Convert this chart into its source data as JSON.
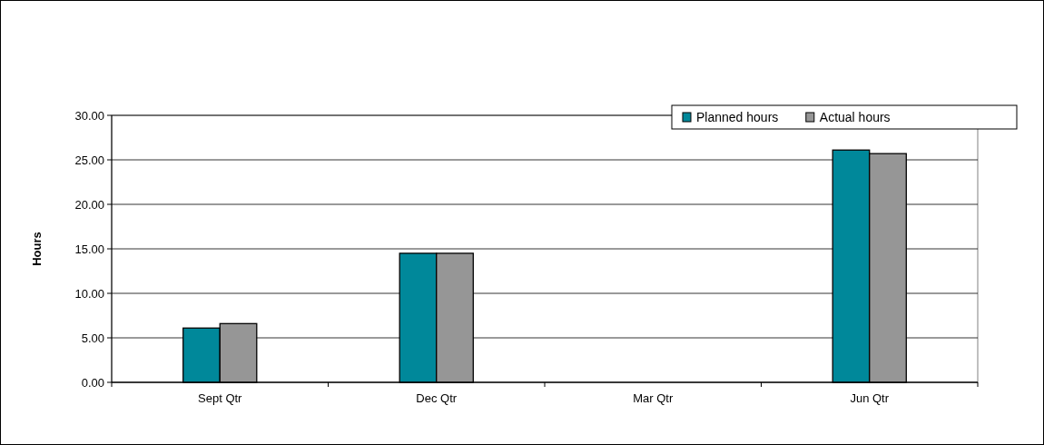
{
  "chart_data": {
    "type": "bar",
    "ylabel": "Hours",
    "categories": [
      "Sept Qtr",
      "Dec Qtr",
      "Mar Qtr",
      "Jun Qtr"
    ],
    "series": [
      {
        "name": "Planned hours",
        "color": "#00889a",
        "values": [
          6.1,
          14.5,
          null,
          26.1
        ]
      },
      {
        "name": "Actual hours",
        "color": "#969696",
        "values": [
          6.6,
          14.5,
          null,
          25.7
        ]
      }
    ],
    "ylim": [
      0,
      30
    ],
    "yticks": [
      {
        "value": 0,
        "label": "0.00"
      },
      {
        "value": 5,
        "label": "5.00"
      },
      {
        "value": 10,
        "label": "10.00"
      },
      {
        "value": 15,
        "label": "15.00"
      },
      {
        "value": 20,
        "label": "20.00"
      },
      {
        "value": 25,
        "label": "25.00"
      },
      {
        "value": 30,
        "label": "30.00"
      }
    ],
    "grid": "y",
    "legend": "top right"
  }
}
